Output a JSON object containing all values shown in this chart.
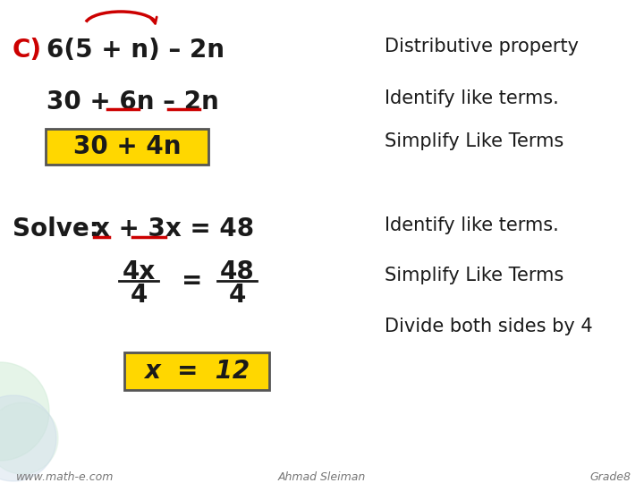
{
  "bg_color": "#ffffff",
  "yellow_color": "#FFD700",
  "red_color": "#cc0000",
  "black_color": "#1a1a1a",
  "gray_color": "#777777",
  "footer_left": "www.math-e.com",
  "footer_center": "Ahmad Sleiman",
  "footer_right": "Grade8"
}
